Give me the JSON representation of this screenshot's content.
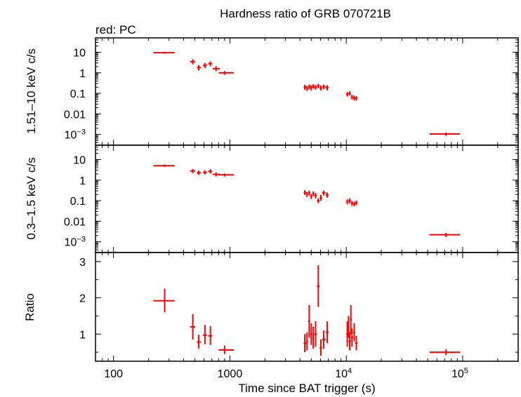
{
  "title": "Hardness ratio of GRB 070721B",
  "mode_label": "red: PC",
  "colors": {
    "series": "#ff0000",
    "axis": "#000000"
  },
  "chart_data": [
    {
      "type": "scatter",
      "panel": "top",
      "ylabel": "1.51–10 keV c/s",
      "yscale": "log",
      "ylim": [
        0.0003,
        50
      ],
      "yticks": [
        {
          "value": 10,
          "label": "10",
          "exp": ""
        },
        {
          "value": 1,
          "label": "1",
          "exp": ""
        },
        {
          "value": 0.1,
          "label": "0.1",
          "exp": ""
        },
        {
          "value": 0.01,
          "label": "0.01",
          "exp": ""
        },
        {
          "value": 0.001,
          "label": "10",
          "exp": "−3"
        }
      ],
      "points": [
        {
          "x": 275,
          "xerr": [
            220,
            335
          ],
          "y": 9.5,
          "yerr": [
            8.5,
            10.5
          ]
        },
        {
          "x": 480,
          "xerr": [
            455,
            505
          ],
          "y": 3.5,
          "yerr": [
            2.6,
            4.6
          ]
        },
        {
          "x": 540,
          "xerr": [
            520,
            565
          ],
          "y": 1.8,
          "yerr": [
            1.3,
            2.4
          ]
        },
        {
          "x": 610,
          "xerr": [
            585,
            635
          ],
          "y": 2.3,
          "yerr": [
            1.7,
            3.0
          ]
        },
        {
          "x": 680,
          "xerr": [
            650,
            705
          ],
          "y": 2.8,
          "yerr": [
            2.1,
            3.6
          ]
        },
        {
          "x": 760,
          "xerr": [
            710,
            820
          ],
          "y": 1.6,
          "yerr": [
            1.2,
            2.1
          ]
        },
        {
          "x": 900,
          "xerr": [
            800,
            1080
          ],
          "y": 1.0,
          "yerr": [
            0.8,
            1.2
          ]
        },
        {
          "x": 4400,
          "xerr": [
            4300,
            4550
          ],
          "y": 0.2,
          "yerr": [
            0.15,
            0.26
          ]
        },
        {
          "x": 4600,
          "xerr": [
            4550,
            4700
          ],
          "y": 0.17,
          "yerr": [
            0.13,
            0.23
          ]
        },
        {
          "x": 4800,
          "xerr": [
            4700,
            4900
          ],
          "y": 0.21,
          "yerr": [
            0.16,
            0.27
          ]
        },
        {
          "x": 5000,
          "xerr": [
            4900,
            5100
          ],
          "y": 0.19,
          "yerr": [
            0.14,
            0.25
          ]
        },
        {
          "x": 5200,
          "xerr": [
            5100,
            5300
          ],
          "y": 0.22,
          "yerr": [
            0.17,
            0.28
          ]
        },
        {
          "x": 5450,
          "xerr": [
            5300,
            5600
          ],
          "y": 0.2,
          "yerr": [
            0.15,
            0.26
          ]
        },
        {
          "x": 5750,
          "xerr": [
            5600,
            5900
          ],
          "y": 0.23,
          "yerr": [
            0.18,
            0.29
          ]
        },
        {
          "x": 6050,
          "xerr": [
            5900,
            6200
          ],
          "y": 0.18,
          "yerr": [
            0.14,
            0.24
          ]
        },
        {
          "x": 6400,
          "xerr": [
            6200,
            6650
          ],
          "y": 0.21,
          "yerr": [
            0.16,
            0.27
          ]
        },
        {
          "x": 6850,
          "xerr": [
            6650,
            7050
          ],
          "y": 0.19,
          "yerr": [
            0.14,
            0.25
          ]
        },
        {
          "x": 10200,
          "xerr": [
            9950,
            10450
          ],
          "y": 0.09,
          "yerr": [
            0.07,
            0.115
          ]
        },
        {
          "x": 10700,
          "xerr": [
            10450,
            10950
          ],
          "y": 0.1,
          "yerr": [
            0.078,
            0.125
          ]
        },
        {
          "x": 11200,
          "xerr": [
            10950,
            11450
          ],
          "y": 0.065,
          "yerr": [
            0.05,
            0.085
          ]
        },
        {
          "x": 11700,
          "xerr": [
            11450,
            11950
          ],
          "y": 0.06,
          "yerr": [
            0.045,
            0.078
          ]
        },
        {
          "x": 12200,
          "xerr": [
            11950,
            12500
          ],
          "y": 0.058,
          "yerr": [
            0.045,
            0.074
          ]
        },
        {
          "x": 72000,
          "xerr": [
            52000,
            95000
          ],
          "y": 0.00105,
          "yerr": [
            0.00085,
            0.00125
          ]
        }
      ]
    },
    {
      "type": "scatter",
      "panel": "middle",
      "ylabel": "0.3–1.5 keV c/s",
      "yscale": "log",
      "ylim": [
        0.0003,
        50
      ],
      "yticks": [
        {
          "value": 10,
          "label": "10",
          "exp": ""
        },
        {
          "value": 1,
          "label": "1",
          "exp": ""
        },
        {
          "value": 0.1,
          "label": "0.1",
          "exp": ""
        },
        {
          "value": 0.01,
          "label": "0.01",
          "exp": ""
        },
        {
          "value": 0.001,
          "label": "10",
          "exp": "−3"
        }
      ],
      "points": [
        {
          "x": 275,
          "xerr": [
            220,
            335
          ],
          "y": 5.0,
          "yerr": [
            4.4,
            5.7
          ]
        },
        {
          "x": 480,
          "xerr": [
            455,
            505
          ],
          "y": 2.8,
          "yerr": [
            2.2,
            3.5
          ]
        },
        {
          "x": 540,
          "xerr": [
            520,
            565
          ],
          "y": 2.3,
          "yerr": [
            1.8,
            2.9
          ]
        },
        {
          "x": 610,
          "xerr": [
            585,
            635
          ],
          "y": 2.4,
          "yerr": [
            1.9,
            3.0
          ]
        },
        {
          "x": 680,
          "xerr": [
            650,
            705
          ],
          "y": 2.7,
          "yerr": [
            2.1,
            3.4
          ]
        },
        {
          "x": 760,
          "xerr": [
            710,
            820
          ],
          "y": 1.9,
          "yerr": [
            1.5,
            2.4
          ]
        },
        {
          "x": 900,
          "xerr": [
            800,
            1080
          ],
          "y": 1.8,
          "yerr": [
            1.5,
            2.1
          ]
        },
        {
          "x": 4400,
          "xerr": [
            4300,
            4550
          ],
          "y": 0.25,
          "yerr": [
            0.19,
            0.32
          ]
        },
        {
          "x": 4600,
          "xerr": [
            4550,
            4700
          ],
          "y": 0.2,
          "yerr": [
            0.15,
            0.26
          ]
        },
        {
          "x": 4800,
          "xerr": [
            4700,
            4900
          ],
          "y": 0.24,
          "yerr": [
            0.18,
            0.31
          ]
        },
        {
          "x": 5000,
          "xerr": [
            4900,
            5100
          ],
          "y": 0.16,
          "yerr": [
            0.12,
            0.21
          ]
        },
        {
          "x": 5200,
          "xerr": [
            5100,
            5300
          ],
          "y": 0.22,
          "yerr": [
            0.17,
            0.28
          ]
        },
        {
          "x": 5450,
          "xerr": [
            5300,
            5600
          ],
          "y": 0.18,
          "yerr": [
            0.13,
            0.24
          ]
        },
        {
          "x": 5750,
          "xerr": [
            5600,
            5900
          ],
          "y": 0.1,
          "yerr": [
            0.075,
            0.13
          ]
        },
        {
          "x": 6050,
          "xerr": [
            5900,
            6200
          ],
          "y": 0.14,
          "yerr": [
            0.1,
            0.19
          ]
        },
        {
          "x": 6400,
          "xerr": [
            6200,
            6650
          ],
          "y": 0.24,
          "yerr": [
            0.18,
            0.31
          ]
        },
        {
          "x": 6850,
          "xerr": [
            6650,
            7050
          ],
          "y": 0.19,
          "yerr": [
            0.14,
            0.25
          ]
        },
        {
          "x": 10200,
          "xerr": [
            9950,
            10450
          ],
          "y": 0.09,
          "yerr": [
            0.068,
            0.115
          ]
        },
        {
          "x": 10700,
          "xerr": [
            10450,
            10950
          ],
          "y": 0.1,
          "yerr": [
            0.075,
            0.13
          ]
        },
        {
          "x": 11200,
          "xerr": [
            10950,
            11450
          ],
          "y": 0.075,
          "yerr": [
            0.056,
            0.097
          ]
        },
        {
          "x": 11700,
          "xerr": [
            11450,
            11950
          ],
          "y": 0.07,
          "yerr": [
            0.053,
            0.09
          ]
        },
        {
          "x": 12200,
          "xerr": [
            11950,
            12500
          ],
          "y": 0.078,
          "yerr": [
            0.06,
            0.1
          ]
        },
        {
          "x": 72000,
          "xerr": [
            52000,
            95000
          ],
          "y": 0.0022,
          "yerr": [
            0.0017,
            0.0027
          ]
        }
      ]
    },
    {
      "type": "scatter",
      "panel": "bottom",
      "ylabel": "Ratio",
      "yscale": "linear",
      "ylim": [
        0.25,
        3.25
      ],
      "yticks": [
        {
          "value": 3,
          "label": "3",
          "exp": ""
        },
        {
          "value": 2,
          "label": "2",
          "exp": ""
        },
        {
          "value": 1,
          "label": "1",
          "exp": ""
        }
      ],
      "points": [
        {
          "x": 275,
          "xerr": [
            220,
            335
          ],
          "y": 1.92,
          "yerr": [
            1.6,
            2.25
          ]
        },
        {
          "x": 480,
          "xerr": [
            455,
            505
          ],
          "y": 1.2,
          "yerr": [
            0.85,
            1.55
          ]
        },
        {
          "x": 540,
          "xerr": [
            520,
            565
          ],
          "y": 0.78,
          "yerr": [
            0.6,
            0.98
          ]
        },
        {
          "x": 610,
          "xerr": [
            585,
            635
          ],
          "y": 0.97,
          "yerr": [
            0.72,
            1.25
          ]
        },
        {
          "x": 680,
          "xerr": [
            650,
            705
          ],
          "y": 0.95,
          "yerr": [
            0.7,
            1.22
          ]
        },
        {
          "x": 900,
          "xerr": [
            800,
            1080
          ],
          "y": 0.56,
          "yerr": [
            0.45,
            0.68
          ]
        },
        {
          "x": 4400,
          "xerr": [
            4300,
            4550
          ],
          "y": 0.75,
          "yerr": [
            0.5,
            1.0
          ]
        },
        {
          "x": 4600,
          "xerr": [
            4550,
            4700
          ],
          "y": 0.8,
          "yerr": [
            0.55,
            1.05
          ]
        },
        {
          "x": 4800,
          "xerr": [
            4700,
            4900
          ],
          "y": 1.35,
          "yerr": [
            0.9,
            1.8
          ]
        },
        {
          "x": 5000,
          "xerr": [
            4900,
            5100
          ],
          "y": 1.0,
          "yerr": [
            0.7,
            1.3
          ]
        },
        {
          "x": 5200,
          "xerr": [
            5100,
            5300
          ],
          "y": 0.9,
          "yerr": [
            0.6,
            1.2
          ]
        },
        {
          "x": 5450,
          "xerr": [
            5300,
            5600
          ],
          "y": 1.0,
          "yerr": [
            0.65,
            1.35
          ]
        },
        {
          "x": 5750,
          "xerr": [
            5600,
            5900
          ],
          "y": 2.32,
          "yerr": [
            1.75,
            2.9
          ]
        },
        {
          "x": 6050,
          "xerr": [
            5900,
            6200
          ],
          "y": 0.62,
          "yerr": [
            0.4,
            0.85
          ]
        },
        {
          "x": 6400,
          "xerr": [
            6200,
            6650
          ],
          "y": 0.85,
          "yerr": [
            0.6,
            1.1
          ]
        },
        {
          "x": 6850,
          "xerr": [
            6650,
            7050
          ],
          "y": 1.05,
          "yerr": [
            0.75,
            1.35
          ]
        },
        {
          "x": 10200,
          "xerr": [
            9950,
            10450
          ],
          "y": 1.0,
          "yerr": [
            0.65,
            1.35
          ]
        },
        {
          "x": 10450,
          "xerr": [
            10250,
            10650
          ],
          "y": 1.2,
          "yerr": [
            0.9,
            1.5
          ]
        },
        {
          "x": 10700,
          "xerr": [
            10450,
            10950
          ],
          "y": 0.8,
          "yerr": [
            0.55,
            1.05
          ]
        },
        {
          "x": 10950,
          "xerr": [
            10750,
            11150
          ],
          "y": 1.4,
          "yerr": [
            1.0,
            1.8
          ]
        },
        {
          "x": 11200,
          "xerr": [
            10950,
            11450
          ],
          "y": 0.9,
          "yerr": [
            0.65,
            1.15
          ]
        },
        {
          "x": 11700,
          "xerr": [
            11450,
            11950
          ],
          "y": 1.05,
          "yerr": [
            0.8,
            1.3
          ]
        },
        {
          "x": 12200,
          "xerr": [
            11950,
            12500
          ],
          "y": 0.75,
          "yerr": [
            0.55,
            0.95
          ]
        },
        {
          "x": 72000,
          "xerr": [
            52000,
            95000
          ],
          "y": 0.5,
          "yerr": [
            0.42,
            0.58
          ]
        }
      ]
    }
  ],
  "x_axis": {
    "label": "Time since BAT trigger (s)",
    "scale": "log",
    "xlim": [
      70,
      300000
    ],
    "ticks": [
      {
        "value": 100,
        "label": "100",
        "exp": ""
      },
      {
        "value": 1000,
        "label": "1000",
        "exp": ""
      },
      {
        "value": 10000,
        "label": "10",
        "exp": "4"
      },
      {
        "value": 100000,
        "label": "10",
        "exp": "5"
      }
    ]
  }
}
